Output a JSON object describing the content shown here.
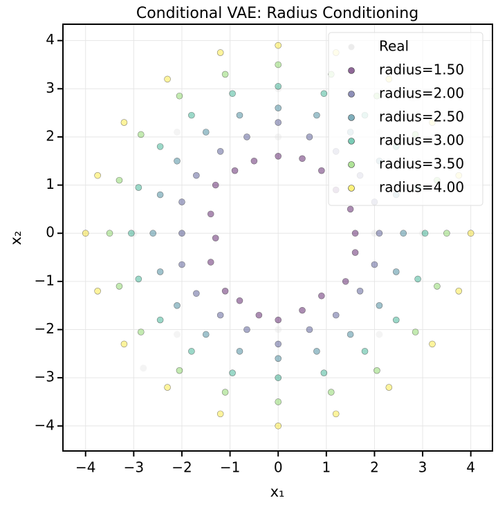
{
  "chart_data": {
    "type": "scatter",
    "title": "Conditional VAE: Radius Conditioning",
    "xlabel": "x₁",
    "ylabel": "x₂",
    "xlim": [
      -4.47,
      4.45
    ],
    "ylim": [
      -4.52,
      4.34
    ],
    "xticks": [
      {
        "value": -4,
        "label": "−4"
      },
      {
        "value": -3,
        "label": "−3"
      },
      {
        "value": -2,
        "label": "−2"
      },
      {
        "value": -1,
        "label": "−1"
      },
      0,
      1,
      2,
      3,
      4
    ],
    "yticks": [
      {
        "value": -4,
        "label": "−4"
      },
      {
        "value": -3,
        "label": "−3"
      },
      {
        "value": -2,
        "label": "−2"
      },
      {
        "value": -1,
        "label": "−1"
      },
      0,
      1,
      2,
      3,
      4
    ],
    "grid": true,
    "legend": "upper right",
    "series": [
      {
        "name": "Real",
        "color": "#d9d9d9",
        "x": [
          2,
          0,
          -2,
          0,
          3,
          0,
          -3,
          0,
          2.1,
          -2.1,
          -2.1,
          2.1,
          4,
          -4,
          2.8,
          -2.8
        ],
        "values": [
          0,
          2,
          0,
          -2,
          0,
          3,
          0,
          -3,
          2.1,
          2.1,
          -2.1,
          -2.1,
          0,
          0,
          2.8,
          -2.8
        ]
      },
      {
        "name": "radius=1.50",
        "color": "#440154",
        "x": [
          1.6,
          1.5,
          1.2,
          0.9,
          0.5,
          0,
          -0.5,
          -0.9,
          -1.3,
          -1.4,
          -1.3,
          -1.4,
          -1.1,
          -0.8,
          -0.4,
          0,
          0.5,
          0.9,
          1.4,
          1.6
        ],
        "values": [
          0,
          0.5,
          0.9,
          1.3,
          1.55,
          1.6,
          1.5,
          1.3,
          1.0,
          0.4,
          -0.1,
          -0.6,
          -1.2,
          -1.4,
          -1.7,
          -1.8,
          -1.6,
          -1.3,
          -1.0,
          -0.4
        ]
      },
      {
        "name": "radius=2.00",
        "color": "#414487",
        "x": [
          2.1,
          2.0,
          1.7,
          1.2,
          0.65,
          0,
          -0.65,
          -1.2,
          -1.7,
          -2.0,
          -2.0,
          -2.0,
          -1.7,
          -1.2,
          -0.65,
          0,
          0.65,
          1.2,
          1.7,
          2.0
        ],
        "values": [
          0,
          0.65,
          1.2,
          1.7,
          2.0,
          2.3,
          2.0,
          1.7,
          1.2,
          0.65,
          0,
          -0.65,
          -1.25,
          -1.7,
          -2.0,
          -2.3,
          -2.0,
          -1.7,
          -1.2,
          -0.65
        ]
      },
      {
        "name": "radius=2.50",
        "color": "#2a788e",
        "x": [
          2.6,
          2.45,
          2.1,
          1.5,
          0.8,
          0,
          -0.8,
          -1.5,
          -2.1,
          -2.45,
          -2.6,
          -2.45,
          -2.1,
          -1.5,
          -0.8,
          0,
          0.8,
          1.5,
          2.1,
          2.45
        ],
        "values": [
          0,
          0.8,
          1.5,
          2.1,
          2.45,
          2.6,
          2.45,
          2.1,
          1.5,
          0.8,
          0,
          -0.8,
          -1.5,
          -2.1,
          -2.45,
          -2.6,
          -2.45,
          -2.1,
          -1.5,
          -0.8
        ]
      },
      {
        "name": "radius=3.00",
        "color": "#22a884",
        "x": [
          3.05,
          2.9,
          2.45,
          1.8,
          0.95,
          0,
          -0.95,
          -1.8,
          -2.45,
          -2.9,
          -3.05,
          -2.9,
          -2.45,
          -1.8,
          -0.95,
          0,
          0.95,
          1.8,
          2.45,
          2.9
        ],
        "values": [
          0,
          0.95,
          1.8,
          2.45,
          2.9,
          3.05,
          2.9,
          2.45,
          1.8,
          0.95,
          0,
          -0.95,
          -1.8,
          -2.45,
          -2.9,
          -3.0,
          -2.9,
          -2.45,
          -1.8,
          -0.95
        ]
      },
      {
        "name": "radius=3.50",
        "color": "#7ad151",
        "x": [
          3.5,
          3.3,
          2.85,
          2.05,
          1.1,
          0,
          -1.1,
          -2.05,
          -2.85,
          -3.3,
          -3.5,
          -3.3,
          -2.85,
          -2.05,
          -1.1,
          0,
          1.1,
          2.05,
          2.85,
          3.3
        ],
        "values": [
          0,
          1.1,
          2.05,
          2.85,
          3.3,
          3.5,
          3.3,
          2.85,
          2.05,
          1.1,
          0,
          -1.1,
          -2.05,
          -2.85,
          -3.3,
          -3.5,
          -3.3,
          -2.85,
          -2.05,
          -1.1
        ]
      },
      {
        "name": "radius=4.00",
        "color": "#fde725",
        "x": [
          4.0,
          3.75,
          3.2,
          2.3,
          1.2,
          0,
          -1.2,
          -2.3,
          -3.2,
          -3.75,
          -4.0,
          -3.75,
          -3.2,
          -2.3,
          -1.2,
          0,
          1.2,
          2.3,
          3.2,
          3.75
        ],
        "values": [
          0,
          1.2,
          2.3,
          3.2,
          3.75,
          3.9,
          3.75,
          3.2,
          2.3,
          1.2,
          0,
          -1.2,
          -2.3,
          -3.2,
          -3.75,
          -4.0,
          -3.75,
          -3.2,
          -2.3,
          -1.2
        ]
      }
    ]
  }
}
